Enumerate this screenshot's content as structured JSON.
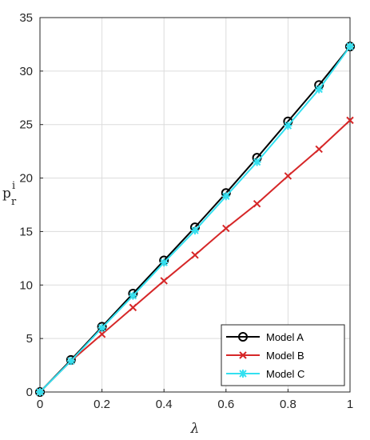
{
  "chart_data": {
    "type": "line",
    "xlabel": "λ",
    "ylabel": {
      "base": "p",
      "sub": "r",
      "sup": "i"
    },
    "xlim": [
      0,
      1
    ],
    "ylim": [
      0,
      35
    ],
    "xticks": [
      0,
      0.2,
      0.4,
      0.6,
      0.8,
      1
    ],
    "xtick_labels": [
      "0",
      "0.2",
      "0.4",
      "0.6",
      "0.8",
      "1"
    ],
    "yticks": [
      0,
      5,
      10,
      15,
      20,
      25,
      30,
      35
    ],
    "ytick_labels": [
      "0",
      "5",
      "10",
      "15",
      "20",
      "25",
      "30",
      "35"
    ],
    "grid": true,
    "legend_position": "bottom-right",
    "x": [
      0,
      0.1,
      0.2,
      0.3,
      0.4,
      0.5,
      0.6,
      0.7,
      0.8,
      0.9,
      1.0
    ],
    "series": [
      {
        "name": "Model A",
        "color": "#000000",
        "marker": "circle",
        "values": [
          0,
          3.0,
          6.1,
          9.2,
          12.3,
          15.4,
          18.6,
          21.9,
          25.3,
          28.7,
          32.3
        ]
      },
      {
        "name": "Model B",
        "color": "#d62728",
        "marker": "x",
        "values": [
          0,
          2.9,
          5.4,
          7.9,
          10.4,
          12.8,
          15.3,
          17.6,
          20.2,
          22.7,
          25.4
        ]
      },
      {
        "name": "Model C",
        "color": "#33e0f0",
        "marker": "asterisk",
        "values": [
          0,
          2.9,
          6.0,
          9.0,
          12.1,
          15.1,
          18.3,
          21.5,
          24.9,
          28.3,
          32.3
        ]
      }
    ]
  }
}
